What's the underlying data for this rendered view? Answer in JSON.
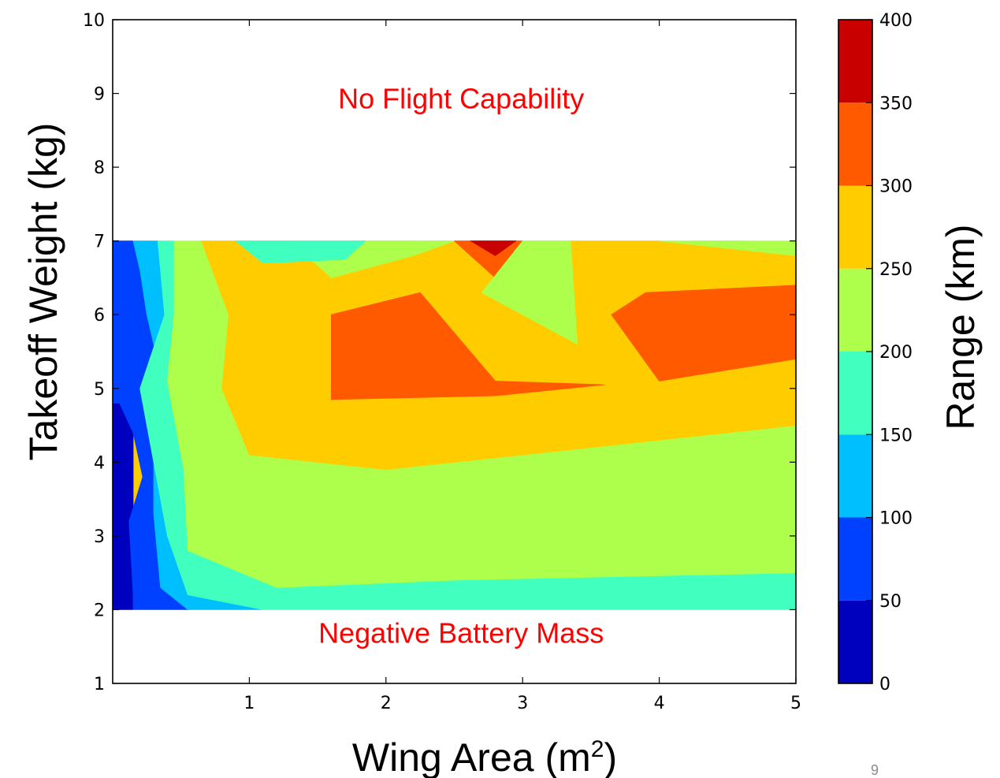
{
  "chart_data": {
    "type": "contour",
    "xlabel": "Wing Area (m",
    "xlabel_sup": "2",
    "xlabel_end": ")",
    "ylabel": "Takeoff Weight (kg)",
    "colorbar_label": "Range (km)",
    "xlim": [
      0.0,
      5.0
    ],
    "ylim": [
      1,
      10
    ],
    "x_ticks": [
      "1",
      "2",
      "3",
      "4",
      "5"
    ],
    "y_ticks": [
      "1",
      "2",
      "3",
      "4",
      "5",
      "6",
      "7",
      "8",
      "9",
      "10"
    ],
    "x_tick_values": [
      1,
      2,
      3,
      4,
      5
    ],
    "y_tick_values": [
      1,
      2,
      3,
      4,
      5,
      6,
      7,
      8,
      9,
      10
    ],
    "colorbar_ticks": [
      "0",
      "50",
      "100",
      "150",
      "200",
      "250",
      "300",
      "350",
      "400"
    ],
    "levels": [
      0,
      50,
      100,
      150,
      200,
      250,
      300,
      350,
      400
    ],
    "level_colors": [
      "#0000bf",
      "#0040ff",
      "#00bfff",
      "#40ffbf",
      "#aeff4b",
      "#ffcc00",
      "#ff5a00",
      "#c80000"
    ],
    "data_region": {
      "x": [
        0.0,
        5.0
      ],
      "y": [
        2,
        7
      ]
    },
    "bands": [
      {
        "range": "0-50",
        "color": "#0000bf",
        "points": [
          [
            0,
            2
          ],
          [
            0.15,
            2
          ],
          [
            0.15,
            2.2
          ],
          [
            0.15,
            3.5
          ],
          [
            0.15,
            4.4
          ],
          [
            0.05,
            4.8
          ],
          [
            0,
            4.8
          ]
        ]
      },
      {
        "range": "50-100",
        "color": "#0040ff",
        "points": [
          [
            0,
            4.8
          ],
          [
            0.05,
            4.8
          ],
          [
            0.15,
            4.4
          ],
          [
            0.22,
            3.8
          ],
          [
            0.12,
            3.2
          ],
          [
            0.15,
            2.2
          ],
          [
            0.15,
            2
          ],
          [
            0.55,
            2
          ],
          [
            0.35,
            2.3
          ],
          [
            0.3,
            3.3
          ],
          [
            0.3,
            4.3
          ],
          [
            0.35,
            5.2
          ],
          [
            0.25,
            6
          ],
          [
            0.2,
            6.6
          ],
          [
            0.15,
            7
          ],
          [
            0,
            7
          ]
        ]
      },
      {
        "range": "100-150",
        "color": "#00bfff",
        "points": [
          [
            0.15,
            7
          ],
          [
            0.2,
            6.6
          ],
          [
            0.25,
            6
          ],
          [
            0.35,
            5.2
          ],
          [
            0.3,
            4.3
          ],
          [
            0.3,
            3.3
          ],
          [
            0.35,
            2.3
          ],
          [
            0.55,
            2
          ],
          [
            1.1,
            2
          ],
          [
            0.55,
            2.2
          ],
          [
            0.4,
            3
          ],
          [
            0.2,
            5
          ],
          [
            0.38,
            6
          ],
          [
            0.33,
            7
          ]
        ]
      },
      {
        "range": "150-200",
        "color": "#40ffbf",
        "points": [
          [
            0.33,
            7
          ],
          [
            0.38,
            6
          ],
          [
            0.2,
            5
          ],
          [
            0.4,
            3
          ],
          [
            0.55,
            2.2
          ],
          [
            1.1,
            2
          ],
          [
            5,
            2
          ],
          [
            5,
            2.5
          ],
          [
            2.5,
            2.4
          ],
          [
            1.2,
            2.3
          ],
          [
            0.55,
            2.8
          ],
          [
            0.52,
            3.9
          ],
          [
            0.4,
            5.1
          ],
          [
            0.45,
            6
          ],
          [
            0.45,
            7
          ]
        ]
      },
      {
        "range": "200-250",
        "color": "#aeff4b",
        "points": [
          [
            0.45,
            7
          ],
          [
            0.45,
            6
          ],
          [
            0.4,
            5.1
          ],
          [
            0.52,
            3.9
          ],
          [
            0.55,
            2.8
          ],
          [
            1.2,
            2.3
          ],
          [
            2.5,
            2.4
          ],
          [
            5,
            2.5
          ],
          [
            5,
            4.5
          ],
          [
            2,
            3.9
          ],
          [
            1.0,
            4.1
          ],
          [
            0.8,
            5
          ],
          [
            0.85,
            6
          ],
          [
            0.65,
            7
          ]
        ]
      },
      {
        "range": "250-300",
        "color": "#ffcc00",
        "points": [
          [
            0.65,
            7
          ],
          [
            0.85,
            6
          ],
          [
            0.8,
            5
          ],
          [
            1.0,
            4.1
          ],
          [
            2,
            3.9
          ],
          [
            5,
            4.5
          ],
          [
            5,
            6.8
          ],
          [
            4,
            7
          ],
          [
            1.3,
            7
          ]
        ]
      },
      {
        "range": "300-350",
        "color": "#ff5a00",
        "points": [
          [
            1.6,
            6
          ],
          [
            2.25,
            6.3
          ],
          [
            2.8,
            5.1
          ],
          [
            3.6,
            5.05
          ],
          [
            2.8,
            4.9
          ],
          [
            1.6,
            4.85
          ]
        ]
      },
      {
        "range": "300-350",
        "color": "#ff5a00",
        "points": [
          [
            3.65,
            6
          ],
          [
            3.9,
            6.3
          ],
          [
            5,
            6.4
          ],
          [
            5,
            5.4
          ],
          [
            4,
            5.1
          ]
        ]
      },
      {
        "range": "300-350",
        "color": "#ff5a00",
        "points": [
          [
            2.5,
            7
          ],
          [
            3,
            7
          ],
          [
            2.8,
            6.5
          ]
        ]
      },
      {
        "range": "350-400",
        "color": "#c80000",
        "points": [
          [
            2.62,
            7
          ],
          [
            2.95,
            7
          ],
          [
            2.8,
            6.8
          ]
        ]
      },
      {
        "range": "200-250",
        "color": "#aeff4b",
        "points": [
          [
            3,
            7
          ],
          [
            2.7,
            6.3
          ],
          [
            3.4,
            5.6
          ],
          [
            3.35,
            7
          ]
        ]
      },
      {
        "range": "200-250",
        "color": "#aeff4b",
        "points": [
          [
            1.3,
            7
          ],
          [
            1.6,
            6.5
          ],
          [
            2.2,
            6.8
          ],
          [
            2.5,
            7
          ]
        ]
      },
      {
        "range": "200-250",
        "color": "#aeff4b",
        "points": [
          [
            1.8,
            7
          ],
          [
            1.9,
            6.8
          ],
          [
            2.2,
            7
          ]
        ]
      },
      {
        "range": "150-200",
        "color": "#40ffbf",
        "points": [
          [
            0.9,
            7
          ],
          [
            1.1,
            6.7
          ],
          [
            1.7,
            6.75
          ],
          [
            1.85,
            7
          ]
        ]
      },
      {
        "range": "150-200",
        "color": "#40ffbf",
        "points": [
          [
            4.25,
            7
          ],
          [
            4.45,
            6.92
          ],
          [
            4.6,
            7
          ]
        ]
      },
      {
        "range": "200-250",
        "color": "#aeff4b",
        "points": [
          [
            4,
            7
          ],
          [
            5,
            6.8
          ],
          [
            5,
            7
          ]
        ]
      }
    ],
    "annotations": [
      {
        "text": "No Flight Capability",
        "x": 2.55,
        "y": 8.8
      },
      {
        "text": "Negative Battery Mass",
        "x": 2.55,
        "y": 1.55
      }
    ]
  },
  "page": {
    "number": "9"
  }
}
